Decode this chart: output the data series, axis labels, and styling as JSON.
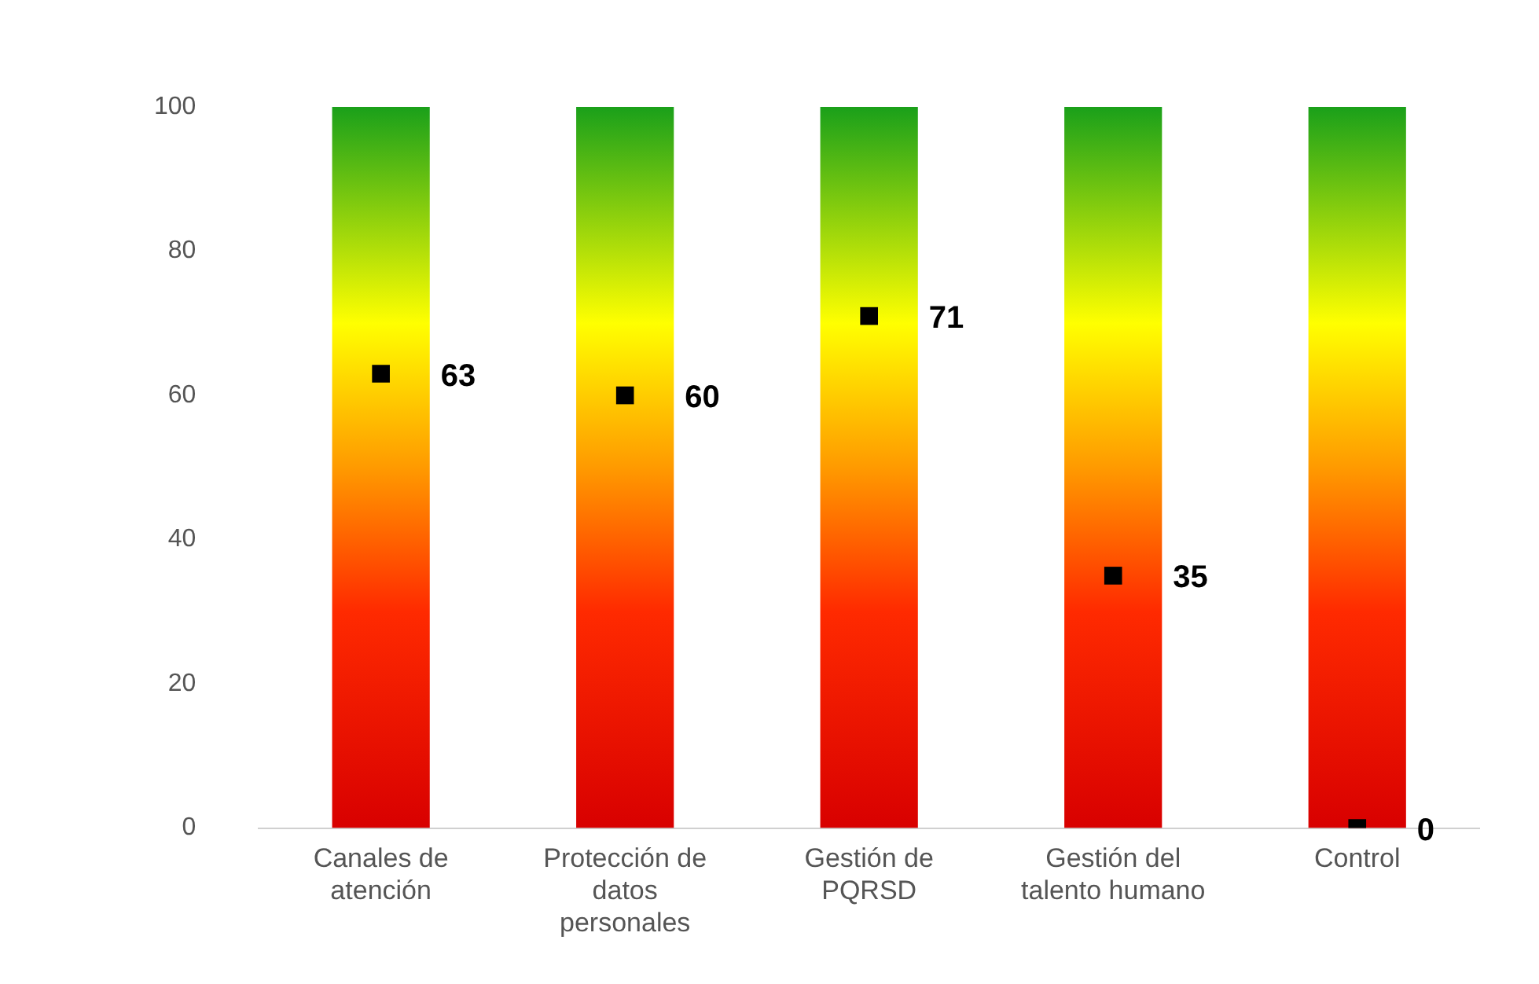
{
  "chart_data": {
    "type": "bar",
    "categories": [
      "Canales de atención",
      "Protección de datos personales",
      "Gestión de PQRSD",
      "Gestión del talento humano",
      "Control"
    ],
    "series": [
      {
        "color": "#ffff00",
        "values": [
          100,
          100,
          100,
          100,
          100
        ]
      },
      {
        "type": "scatter",
        "color": "#000000",
        "marker": "square",
        "values": [
          63,
          60,
          71,
          35,
          0
        ],
        "value_labels": [
          "63",
          "60",
          "71",
          "35",
          "0"
        ]
      }
    ],
    "ylim": [
      0,
      100
    ],
    "yticks": [
      0,
      20,
      40,
      60,
      80,
      100
    ],
    "grid": false,
    "legend": false
  }
}
